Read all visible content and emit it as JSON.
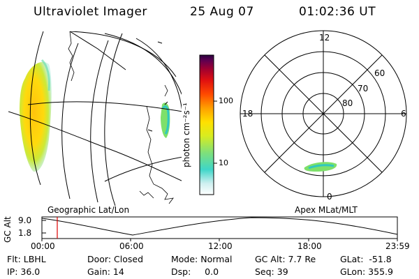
{
  "header": {
    "instrument": "Ultraviolet Imager",
    "date": "25 Aug 07",
    "time": "01:02:36 UT"
  },
  "colorbar": {
    "unit_label": "photon cm⁻²s⁻¹",
    "tick_labels": [
      "100",
      "10"
    ]
  },
  "polar_plot": {
    "mlt_labels": [
      "12",
      "18",
      "6",
      "0"
    ],
    "mlat_labels": [
      "60",
      "70",
      "80"
    ]
  },
  "captions": {
    "geo": "Geographic Lat/Lon",
    "apex": "Apex MLat/MLT"
  },
  "altitude_plot": {
    "ylabel": "GC Alt",
    "y_ticks": [
      "9.0",
      "1.8"
    ],
    "x_ticks": [
      "00:00",
      "06:00",
      "12:00",
      "18:00",
      "23:59"
    ],
    "marker_time": "01:02:36"
  },
  "info": {
    "flt": "Flt: LBHL",
    "ip": "IP: 36.0",
    "door": "Door: Closed",
    "gain": "Gain: 14",
    "mode": "Mode: Normal",
    "dsp": "Dsp:     0.0",
    "gcalt": "GC Alt: 7.7 Re",
    "seq": "Seq: 39",
    "glat": "GLat:  -51.8",
    "glon": "GLon: 355.9"
  },
  "colors": {
    "colorbar_stops": [
      "#ffffff",
      "#cfeff0",
      "#3fd6c8",
      "#7fe07a",
      "#d8ec20",
      "#ffe000",
      "#ffa000",
      "#ff4a00",
      "#e01010",
      "#a00030",
      "#600050",
      "#2a0040"
    ],
    "marker": "#dd0000"
  }
}
